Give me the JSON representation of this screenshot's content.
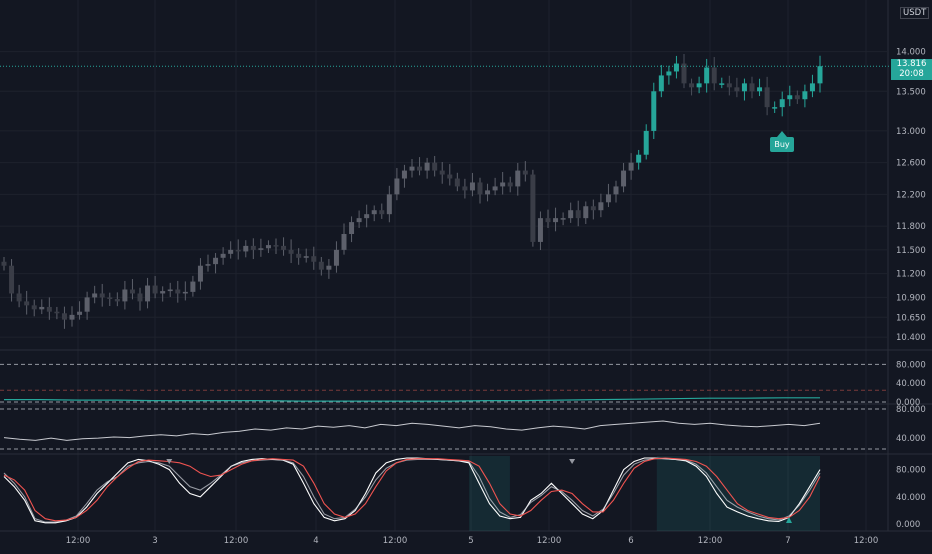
{
  "quote_currency": "USDT",
  "price_axis": {
    "ticks": [
      14.0,
      13.5,
      13.0,
      12.6,
      12.2,
      11.8,
      11.5,
      11.2,
      10.9,
      10.65,
      10.4
    ],
    "labels": [
      "14.000",
      "13.500",
      "13.000",
      "12.600",
      "12.200",
      "11.800",
      "11.500",
      "11.200",
      "10.900",
      "10.650",
      "10.400"
    ]
  },
  "last_price": {
    "value": 13.816,
    "label": "13.816",
    "countdown": "20:08"
  },
  "x_axis_labels": [
    "12:00",
    "3",
    "12:00",
    "4",
    "12:00",
    "5",
    "12:00",
    "6",
    "12:00",
    "7",
    "12:00"
  ],
  "signal_label": "Buy",
  "colors": {
    "up": "#26a69a",
    "down": "#363a45",
    "bg": "#131722",
    "grid": "#1e222d",
    "text": "#b2b5be",
    "stoch_k": "#e8e8e8",
    "stoch_d": "#ef5350"
  },
  "panel1_axis": [
    "80.000",
    "40.000",
    "0.000"
  ],
  "panel2_axis": [
    "80.000",
    "40.000"
  ],
  "panel3_axis": [
    "80.000",
    "40.000",
    "0.000"
  ],
  "chart_data": [
    {
      "type": "candlestick",
      "title": "",
      "ylim": [
        10.3,
        14.5
      ],
      "x": [
        "12:00",
        "3",
        "12:00",
        "4",
        "12:00",
        "5",
        "12:00",
        "6",
        "12:00",
        "7",
        "12:00"
      ],
      "close_path": [
        11.3,
        10.95,
        10.85,
        10.8,
        10.75,
        10.78,
        10.72,
        10.7,
        10.62,
        10.68,
        10.72,
        10.9,
        10.95,
        10.9,
        10.88,
        10.85,
        11.0,
        10.95,
        10.85,
        11.05,
        10.95,
        10.98,
        11.0,
        10.95,
        10.97,
        11.1,
        11.3,
        11.32,
        11.4,
        11.45,
        11.5,
        11.48,
        11.55,
        11.5,
        11.52,
        11.56,
        11.55,
        11.5,
        11.45,
        11.4,
        11.42,
        11.35,
        11.25,
        11.3,
        11.5,
        11.7,
        11.85,
        11.9,
        11.95,
        12.0,
        11.95,
        12.2,
        12.4,
        12.5,
        12.55,
        12.5,
        12.6,
        12.5,
        12.45,
        12.4,
        12.3,
        12.25,
        12.35,
        12.2,
        12.25,
        12.3,
        12.35,
        12.3,
        12.5,
        12.45,
        11.6,
        11.9,
        11.85,
        11.9,
        11.9,
        12.0,
        11.9,
        12.05,
        12.0,
        12.1,
        12.2,
        12.3,
        12.5,
        12.6,
        12.7,
        13.0,
        13.5,
        13.7,
        13.75,
        13.85,
        13.6,
        13.55,
        13.6,
        13.8,
        13.6,
        13.6,
        13.55,
        13.5,
        13.6,
        13.5,
        13.55,
        13.3,
        13.3,
        13.4,
        13.45,
        13.4,
        13.5,
        13.6,
        13.816
      ],
      "buy_signal_index": 101
    },
    {
      "type": "line",
      "title": "",
      "ylim": [
        0,
        100
      ],
      "values": [
        5,
        5,
        4,
        4,
        3,
        3,
        3,
        3,
        2,
        2,
        2,
        2,
        2,
        3,
        3,
        4,
        5,
        6,
        7,
        8,
        8,
        9,
        9
      ],
      "levels": [
        80,
        25,
        0
      ]
    },
    {
      "type": "line",
      "title": "",
      "ylim": [
        0,
        100
      ],
      "values": [
        35,
        32,
        30,
        34,
        30,
        33,
        34,
        36,
        35,
        38,
        40,
        38,
        42,
        40,
        44,
        46,
        50,
        48,
        52,
        50,
        55,
        53,
        56,
        52,
        58,
        56,
        60,
        58,
        55,
        52,
        56,
        54,
        50,
        48,
        52,
        55,
        53,
        50,
        56,
        58,
        60,
        62,
        64,
        60,
        58,
        60,
        57,
        55,
        54,
        56,
        58,
        56,
        60
      ],
      "levels": [
        85,
        15
      ]
    },
    {
      "type": "line",
      "title": "",
      "ylim": [
        0,
        100
      ],
      "series": [
        {
          "values": [
            70,
            55,
            35,
            5,
            2,
            2,
            5,
            10,
            25,
            45,
            60,
            75,
            90,
            95,
            93,
            88,
            80,
            60,
            45,
            40,
            55,
            70,
            85,
            92,
            95,
            96,
            95,
            94,
            88,
            60,
            30,
            10,
            5,
            8,
            20,
            45,
            75,
            90,
            95,
            97,
            97,
            96,
            95,
            94,
            93,
            90,
            60,
            30,
            12,
            8,
            10,
            35,
            45,
            60,
            45,
            30,
            15,
            8,
            20,
            50,
            80,
            92,
            97,
            97,
            96,
            95,
            93,
            85,
            70,
            45,
            25,
            18,
            12,
            8,
            5,
            4,
            10,
            30,
            55,
            80
          ]
        },
        {
          "values": [
            75,
            60,
            40,
            8,
            3,
            3,
            6,
            12,
            30,
            50,
            62,
            70,
            85,
            90,
            92,
            90,
            85,
            70,
            55,
            50,
            60,
            72,
            85,
            90,
            93,
            94,
            95,
            94,
            90,
            70,
            40,
            15,
            8,
            10,
            22,
            40,
            65,
            82,
            90,
            94,
            95,
            95,
            95,
            94,
            93,
            92,
            70,
            38,
            18,
            10,
            14,
            32,
            42,
            55,
            48,
            35,
            20,
            12,
            22,
            45,
            72,
            88,
            94,
            96,
            96,
            95,
            94,
            88,
            75,
            55,
            35,
            25,
            18,
            12,
            8,
            6,
            12,
            28,
            50,
            75
          ]
        },
        {
          "values": [
            72,
            65,
            50,
            20,
            8,
            5,
            6,
            10,
            20,
            35,
            55,
            70,
            82,
            92,
            94,
            93,
            92,
            90,
            85,
            75,
            70,
            72,
            80,
            88,
            93,
            95,
            96,
            95,
            94,
            85,
            60,
            30,
            15,
            10,
            15,
            30,
            55,
            78,
            90,
            95,
            96,
            96,
            96,
            95,
            94,
            93,
            85,
            60,
            30,
            15,
            12,
            20,
            35,
            48,
            50,
            45,
            30,
            18,
            18,
            35,
            60,
            82,
            92,
            96,
            97,
            96,
            95,
            92,
            85,
            70,
            50,
            30,
            20,
            15,
            10,
            8,
            10,
            20,
            40,
            70
          ]
        }
      ],
      "signals": {
        "down_at": [
          16,
          55
        ],
        "up_at": [
          96
        ]
      },
      "shaded_ranges": [
        [
          57,
          62
        ],
        [
          80,
          100
        ]
      ]
    }
  ]
}
